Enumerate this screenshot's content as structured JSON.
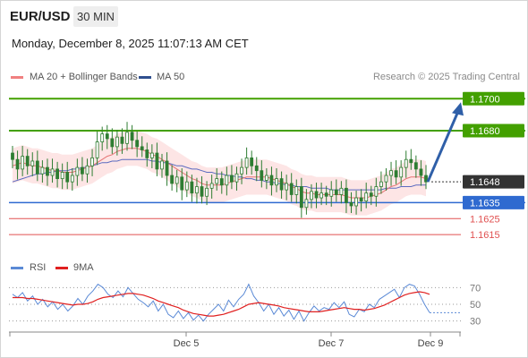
{
  "header": {
    "pair": "EUR/USD",
    "interval": "30 MIN",
    "timestamp": "Monday, December 8, 2025 11:07:13 AM CET"
  },
  "legend": {
    "ma20": "MA 20 + Bollinger Bands",
    "ma50": "MA 50",
    "copyright": "Research © 2025 Trading Central"
  },
  "rsi_legend": {
    "rsi": "RSI",
    "ma9": "9MA"
  },
  "colors": {
    "candle": "#2e7d32",
    "ma20": "#e57373",
    "bb_fill": "#fde2e2",
    "ma50": "#5c6bc0",
    "resistance": "#43a000",
    "support_blue": "#2f6ad0",
    "support_red": "#e05050",
    "arrow": "#2f5fa8",
    "rsi": "#5b8ad6",
    "rsi_ma": "#e02020"
  },
  "chart_data": [
    {
      "type": "candlestick",
      "title": "EUR/USD 30 MIN",
      "ylim": [
        1.1605,
        1.1708
      ],
      "x_ticks": [
        "Dec 5",
        "Dec 7",
        "Dec 9"
      ],
      "levels": [
        {
          "value": "1.1700",
          "kind": "resistance"
        },
        {
          "value": "1.1680",
          "kind": "resistance"
        },
        {
          "value": "1.1648",
          "kind": "current"
        },
        {
          "value": "1.1635",
          "kind": "support"
        },
        {
          "value": "1.1625",
          "kind": "support-minor"
        },
        {
          "value": "1.1615",
          "kind": "support-minor"
        }
      ],
      "current_price": 1.1648,
      "forecast_target": 1.17,
      "candle_closes": [
        1.1662,
        1.1656,
        1.1664,
        1.1658,
        1.1661,
        1.1653,
        1.1657,
        1.1652,
        1.1656,
        1.165,
        1.1654,
        1.1648,
        1.1652,
        1.1657,
        1.1653,
        1.1658,
        1.1663,
        1.1673,
        1.1678,
        1.1675,
        1.167,
        1.1676,
        1.1672,
        1.1679,
        1.1674,
        1.167,
        1.1668,
        1.1663,
        1.1666,
        1.1656,
        1.1661,
        1.1652,
        1.1647,
        1.1651,
        1.1643,
        1.1648,
        1.1641,
        1.1645,
        1.1639,
        1.1644,
        1.1647,
        1.165,
        1.1646,
        1.1652,
        1.1648,
        1.1653,
        1.1657,
        1.1663,
        1.1658,
        1.1655,
        1.1649,
        1.1652,
        1.1646,
        1.165,
        1.1643,
        1.1647,
        1.164,
        1.1645,
        1.1632,
        1.1637,
        1.1642,
        1.1638,
        1.1641,
        1.1639,
        1.1643,
        1.164,
        1.1644,
        1.1635,
        1.1633,
        1.1638,
        1.1636,
        1.1641,
        1.1639,
        1.1645,
        1.1648,
        1.1652,
        1.1655,
        1.1651,
        1.1657,
        1.1662,
        1.166,
        1.1656,
        1.1652,
        1.1648
      ],
      "ma20": [
        1.1658,
        1.1659,
        1.166,
        1.1659,
        1.1658,
        1.1658,
        1.1657,
        1.1656,
        1.1655,
        1.1655,
        1.1654,
        1.1654,
        1.1654,
        1.1655,
        1.1656,
        1.1657,
        1.1658,
        1.166,
        1.1662,
        1.1664,
        1.1665,
        1.1667,
        1.1668,
        1.1669,
        1.1669,
        1.1669,
        1.1668,
        1.1667,
        1.1665,
        1.1664,
        1.1662,
        1.166,
        1.1658,
        1.1656,
        1.1654,
        1.1652,
        1.165,
        1.1649,
        1.1647,
        1.1646,
        1.1646,
        1.1646,
        1.1646,
        1.1647,
        1.1648,
        1.1649,
        1.165,
        1.1651,
        1.1651,
        1.1651,
        1.1651,
        1.1651,
        1.165,
        1.1649,
        1.1648,
        1.1647,
        1.1645,
        1.1644,
        1.1642,
        1.1641,
        1.1641,
        1.164,
        1.164,
        1.164,
        1.164,
        1.164,
        1.164,
        1.1639,
        1.1638,
        1.1638,
        1.1638,
        1.1638,
        1.1639,
        1.164,
        1.1641,
        1.1643,
        1.1645,
        1.1646,
        1.1648,
        1.165,
        1.1651,
        1.1651,
        1.1651,
        1.165
      ],
      "ma50": [
        1.1648,
        1.1649,
        1.165,
        1.1651,
        1.1652,
        1.1653,
        1.1653,
        1.1654,
        1.1654,
        1.1655,
        1.1655,
        1.1655,
        1.1656,
        1.1656,
        1.1657,
        1.1657,
        1.1658,
        1.1659,
        1.166,
        1.166,
        1.1661,
        1.1661,
        1.1662,
        1.1662,
        1.1662,
        1.1662,
        1.1662,
        1.1662,
        1.1661,
        1.1661,
        1.166,
        1.166,
        1.1659,
        1.1658,
        1.1658,
        1.1657,
        1.1656,
        1.1656,
        1.1655,
        1.1654,
        1.1654,
        1.1653,
        1.1653,
        1.1652,
        1.1652,
        1.1651,
        1.1651,
        1.165,
        1.165,
        1.1649,
        1.1649,
        1.1648,
        1.1648,
        1.1647,
        1.1647,
        1.1646,
        1.1646,
        1.1645,
        1.1645,
        1.1645,
        1.1644,
        1.1644,
        1.1644,
        1.1644,
        1.1643,
        1.1643,
        1.1643,
        1.1643,
        1.1643,
        1.1643,
        1.1643,
        1.1643,
        1.1643,
        1.1643,
        1.1643,
        1.1644,
        1.1644,
        1.1644,
        1.1645,
        1.1645,
        1.1645,
        1.1646,
        1.1646,
        1.1646
      ],
      "bb_width": 0.0011
    },
    {
      "type": "line",
      "title": "RSI",
      "ylim": [
        20,
        80
      ],
      "y_ticks": [
        "70",
        "50",
        "30"
      ],
      "series": [
        {
          "name": "RSI",
          "values": [
            62,
            58,
            64,
            54,
            60,
            50,
            56,
            47,
            53,
            44,
            50,
            42,
            48,
            57,
            50,
            60,
            66,
            74,
            70,
            62,
            58,
            66,
            59,
            70,
            63,
            56,
            52,
            47,
            54,
            42,
            50,
            38,
            34,
            42,
            33,
            40,
            31,
            37,
            30,
            38,
            44,
            50,
            42,
            55,
            47,
            56,
            62,
            74,
            60,
            52,
            42,
            50,
            38,
            46,
            36,
            43,
            32,
            42,
            30,
            40,
            48,
            42,
            46,
            44,
            52,
            46,
            53,
            38,
            35,
            44,
            41,
            50,
            46,
            56,
            60,
            64,
            68,
            58,
            70,
            74,
            72,
            62,
            50,
            40
          ]
        },
        {
          "name": "9MA",
          "values": [
            58,
            58,
            58,
            57,
            57,
            56,
            55,
            54,
            53,
            52,
            51,
            50,
            49,
            50,
            50,
            51,
            53,
            56,
            58,
            59,
            60,
            61,
            62,
            63,
            63,
            62,
            61,
            59,
            57,
            54,
            52,
            50,
            48,
            46,
            43,
            41,
            39,
            38,
            37,
            36,
            36,
            37,
            38,
            40,
            42,
            44,
            47,
            50,
            51,
            52,
            51,
            50,
            49,
            48,
            46,
            45,
            44,
            43,
            42,
            41,
            41,
            41,
            42,
            43,
            44,
            45,
            46,
            45,
            44,
            44,
            43,
            44,
            45,
            47,
            49,
            52,
            55,
            58,
            61,
            63,
            64,
            65,
            64,
            62
          ]
        }
      ]
    }
  ]
}
